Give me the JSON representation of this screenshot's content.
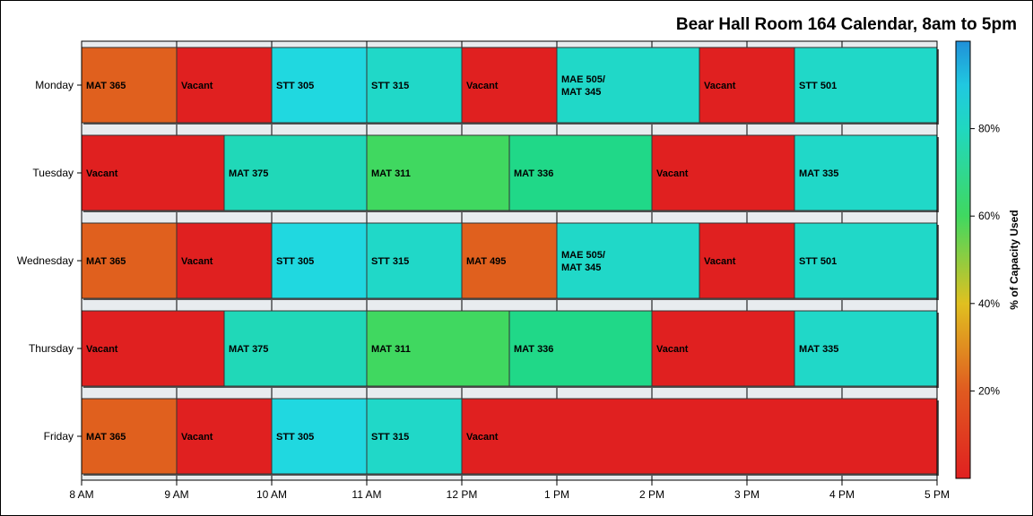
{
  "chart_data": {
    "type": "bar",
    "orientation": "horizontal-timeline",
    "title": "Bear Hall Room 164 Calendar, 8am to 5pm",
    "days": [
      "Monday",
      "Tuesday",
      "Wednesday",
      "Thursday",
      "Friday"
    ],
    "x_tick_labels": [
      "8 AM",
      "9 AM",
      "10 AM",
      "11 AM",
      "12 PM",
      "1 PM",
      "2 PM",
      "3 PM",
      "4 PM",
      "5 PM"
    ],
    "x_range_hours": [
      8,
      17
    ],
    "colorbar": {
      "title": "% of Capacity Used",
      "tick_labels": [
        "20%",
        "40%",
        "60%",
        "80%"
      ],
      "tick_values": [
        20,
        40,
        60,
        80
      ],
      "range": [
        0,
        100
      ],
      "colors": [
        "#e02020",
        "#e06020",
        "#e0c020",
        "#40d860",
        "#20d8c0",
        "#20b8e0",
        "#2090d8"
      ]
    },
    "series": [
      {
        "day": "Monday",
        "events": [
          {
            "start": 8.0,
            "end": 9.0,
            "label": "MAT 365",
            "color": "#e0601e"
          },
          {
            "start": 9.0,
            "end": 10.0,
            "label": "Vacant",
            "color": "#e02020"
          },
          {
            "start": 10.0,
            "end": 11.0,
            "label": "STT 305",
            "color": "#20d8e0"
          },
          {
            "start": 11.0,
            "end": 12.0,
            "label": "STT 315",
            "color": "#20d8c8"
          },
          {
            "start": 12.0,
            "end": 13.0,
            "label": "Vacant",
            "color": "#e02020"
          },
          {
            "start": 13.0,
            "end": 14.5,
            "label": "MAE 505/\nMAT 345",
            "color": "#20d8c8"
          },
          {
            "start": 14.5,
            "end": 15.5,
            "label": "Vacant",
            "color": "#e02020"
          },
          {
            "start": 15.5,
            "end": 17.0,
            "label": "STT 501",
            "color": "#20d8c8"
          }
        ]
      },
      {
        "day": "Tuesday",
        "events": [
          {
            "start": 8.0,
            "end": 9.5,
            "label": "Vacant",
            "color": "#e02020"
          },
          {
            "start": 9.5,
            "end": 11.0,
            "label": "MAT 375",
            "color": "#20d8b8"
          },
          {
            "start": 11.0,
            "end": 12.5,
            "label": "MAT 311",
            "color": "#40d860"
          },
          {
            "start": 12.5,
            "end": 14.0,
            "label": "MAT 336",
            "color": "#20d888"
          },
          {
            "start": 14.0,
            "end": 15.5,
            "label": "Vacant",
            "color": "#e02020"
          },
          {
            "start": 15.5,
            "end": 17.0,
            "label": "MAT 335",
            "color": "#20d8c8"
          }
        ]
      },
      {
        "day": "Wednesday",
        "events": [
          {
            "start": 8.0,
            "end": 9.0,
            "label": "MAT 365",
            "color": "#e0601e"
          },
          {
            "start": 9.0,
            "end": 10.0,
            "label": "Vacant",
            "color": "#e02020"
          },
          {
            "start": 10.0,
            "end": 11.0,
            "label": "STT 305",
            "color": "#20d8e0"
          },
          {
            "start": 11.0,
            "end": 12.0,
            "label": "STT 315",
            "color": "#20d8c8"
          },
          {
            "start": 12.0,
            "end": 13.0,
            "label": "MAT 495",
            "color": "#e0601e"
          },
          {
            "start": 13.0,
            "end": 14.5,
            "label": "MAE 505/\nMAT 345",
            "color": "#20d8c8"
          },
          {
            "start": 14.5,
            "end": 15.5,
            "label": "Vacant",
            "color": "#e02020"
          },
          {
            "start": 15.5,
            "end": 17.0,
            "label": "STT 501",
            "color": "#20d8c8"
          }
        ]
      },
      {
        "day": "Thursday",
        "events": [
          {
            "start": 8.0,
            "end": 9.5,
            "label": "Vacant",
            "color": "#e02020"
          },
          {
            "start": 9.5,
            "end": 11.0,
            "label": "MAT 375",
            "color": "#20d8b8"
          },
          {
            "start": 11.0,
            "end": 12.5,
            "label": "MAT 311",
            "color": "#40d860"
          },
          {
            "start": 12.5,
            "end": 14.0,
            "label": "MAT 336",
            "color": "#20d888"
          },
          {
            "start": 14.0,
            "end": 15.5,
            "label": "Vacant",
            "color": "#e02020"
          },
          {
            "start": 15.5,
            "end": 17.0,
            "label": "MAT 335",
            "color": "#20d8c8"
          }
        ]
      },
      {
        "day": "Friday",
        "events": [
          {
            "start": 8.0,
            "end": 9.0,
            "label": "MAT 365",
            "color": "#e0601e"
          },
          {
            "start": 9.0,
            "end": 10.0,
            "label": "Vacant",
            "color": "#e02020"
          },
          {
            "start": 10.0,
            "end": 11.0,
            "label": "STT 305",
            "color": "#20d8e0"
          },
          {
            "start": 11.0,
            "end": 12.0,
            "label": "STT 315",
            "color": "#20d8c8"
          },
          {
            "start": 12.0,
            "end": 17.0,
            "label": "Vacant",
            "color": "#e02020"
          }
        ]
      }
    ]
  }
}
